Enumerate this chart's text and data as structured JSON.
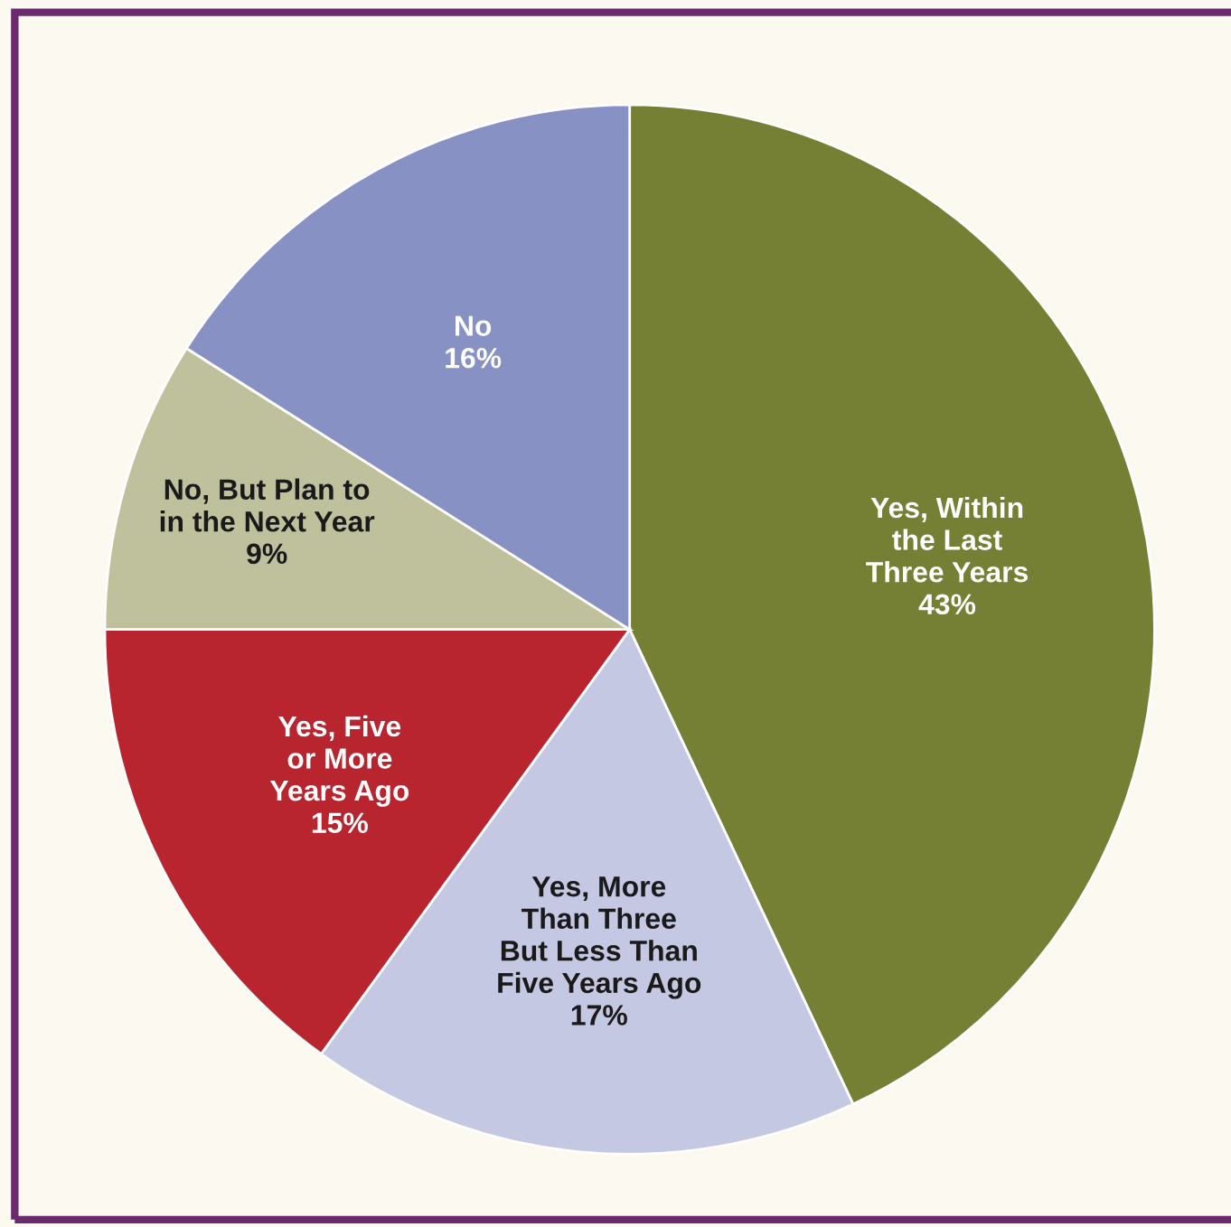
{
  "chart_data": {
    "type": "pie",
    "categories": [
      "Yes, Within\nthe Last\nThree Years",
      "Yes, More\nThan Three\nBut Less Than\nFive Years Ago",
      "Yes, Five\nor More\nYears Ago",
      "No, But Plan to\nin the Next Year",
      "No"
    ],
    "values": [
      43,
      17,
      15,
      9,
      16
    ],
    "value_labels": [
      "43%",
      "17%",
      "15%",
      "9%",
      "16%"
    ],
    "colors": [
      "#768034",
      "#c5c8e3",
      "#b8252e",
      "#bfc09c",
      "#8891c4"
    ],
    "legend": false
  }
}
